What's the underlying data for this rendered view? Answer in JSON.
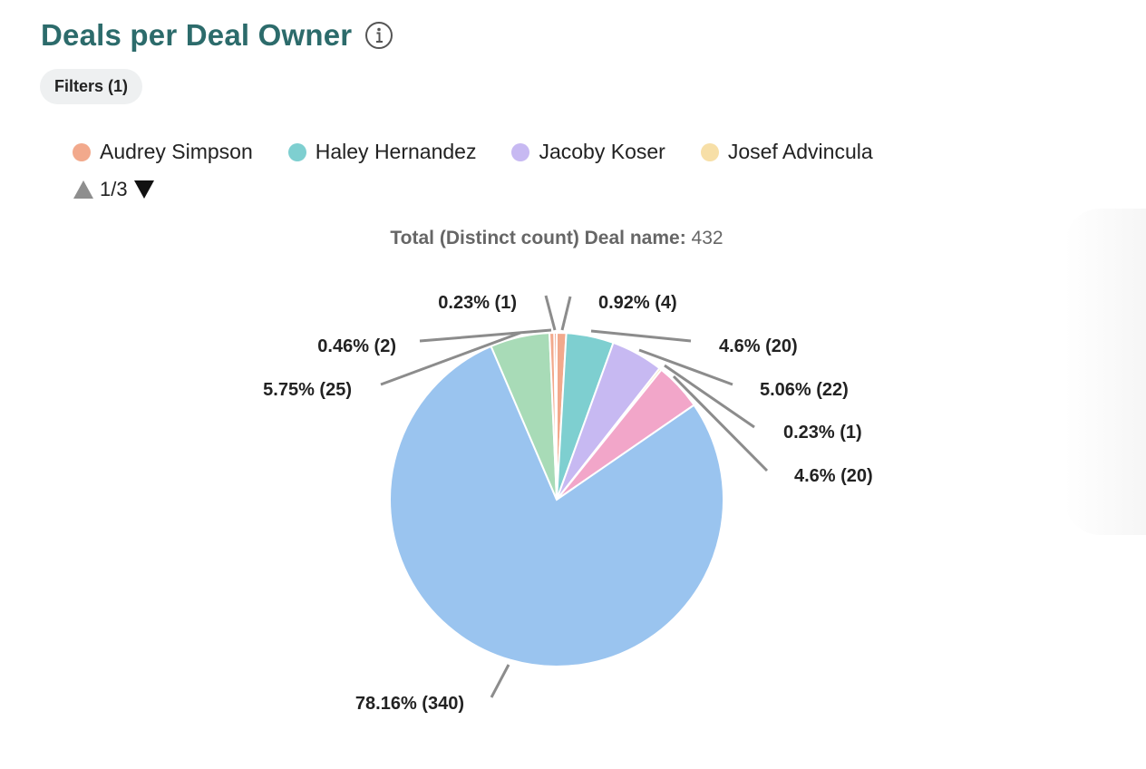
{
  "header": {
    "title": "Deals per Deal Owner",
    "info_icon": "info-circle-icon"
  },
  "filters": {
    "label": "Filters (1)"
  },
  "legend": {
    "items": [
      {
        "label": "Audrey Simpson",
        "color": "#f2a98c"
      },
      {
        "label": "Haley Hernandez",
        "color": "#7ecfd0"
      },
      {
        "label": "Jacoby Koser",
        "color": "#c7b9f2"
      },
      {
        "label": "Josef Advincula",
        "color": "#f7dfa7"
      }
    ],
    "pager": {
      "text": "1/3",
      "prev_icon": "triangle-up-icon",
      "next_icon": "triangle-down-icon"
    }
  },
  "total": {
    "label": "Total (Distinct count) Deal name:",
    "value": "432"
  },
  "chart_data": {
    "type": "pie",
    "title": "",
    "total": 432,
    "slices": [
      {
        "value": 4,
        "label": "0.92% (4)",
        "color": "#f2a98c"
      },
      {
        "value": 20,
        "label": "4.6% (20)",
        "color": "#7ecfd0"
      },
      {
        "value": 22,
        "label": "5.06% (22)",
        "color": "#c7b9f2"
      },
      {
        "value": 1,
        "label": "0.23% (1)",
        "color": "#f7dfa7"
      },
      {
        "value": 20,
        "label": "4.6% (20)",
        "color": "#f2a6c9"
      },
      {
        "value": 340,
        "label": "78.16% (340)",
        "color": "#9ac4ef"
      },
      {
        "value": 25,
        "label": "5.75% (25)",
        "color": "#a8dbb7"
      },
      {
        "value": 2,
        "label": "0.46% (2)",
        "color": "#f2a98c"
      },
      {
        "value": 1,
        "label": "0.23% (1)",
        "color": "#e58266"
      }
    ]
  }
}
